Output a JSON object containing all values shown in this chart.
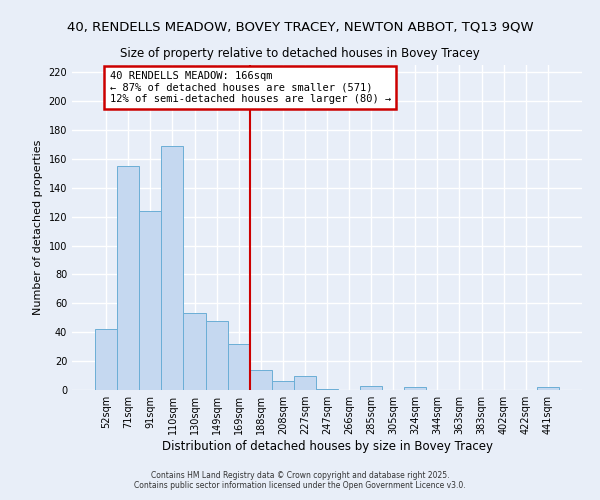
{
  "title": "40, RENDELLS MEADOW, BOVEY TRACEY, NEWTON ABBOT, TQ13 9QW",
  "subtitle": "Size of property relative to detached houses in Bovey Tracey",
  "xlabel": "Distribution of detached houses by size in Bovey Tracey",
  "ylabel": "Number of detached properties",
  "bar_labels": [
    "52sqm",
    "71sqm",
    "91sqm",
    "110sqm",
    "130sqm",
    "149sqm",
    "169sqm",
    "188sqm",
    "208sqm",
    "227sqm",
    "247sqm",
    "266sqm",
    "285sqm",
    "305sqm",
    "324sqm",
    "344sqm",
    "363sqm",
    "383sqm",
    "402sqm",
    "422sqm",
    "441sqm"
  ],
  "bar_values": [
    42,
    155,
    124,
    169,
    53,
    48,
    32,
    14,
    6,
    10,
    1,
    0,
    3,
    0,
    2,
    0,
    0,
    0,
    0,
    0,
    2
  ],
  "bar_color": "#c5d8f0",
  "bar_edge_color": "#6baed6",
  "vline_color": "#cc0000",
  "annotation_title": "40 RENDELLS MEADOW: 166sqm",
  "annotation_line1": "← 87% of detached houses are smaller (571)",
  "annotation_line2": "12% of semi-detached houses are larger (80) →",
  "annotation_box_color": "white",
  "annotation_box_edge_color": "#cc0000",
  "ylim": [
    0,
    225
  ],
  "yticks": [
    0,
    20,
    40,
    60,
    80,
    100,
    120,
    140,
    160,
    180,
    200,
    220
  ],
  "bg_color": "#e8eef8",
  "footer1": "Contains HM Land Registry data © Crown copyright and database right 2025.",
  "footer2": "Contains public sector information licensed under the Open Government Licence v3.0.",
  "title_fontsize": 9.5,
  "subtitle_fontsize": 8.5,
  "xlabel_fontsize": 8.5,
  "ylabel_fontsize": 8.0,
  "tick_fontsize": 7.0,
  "annot_fontsize": 7.5,
  "footer_fontsize": 5.5
}
